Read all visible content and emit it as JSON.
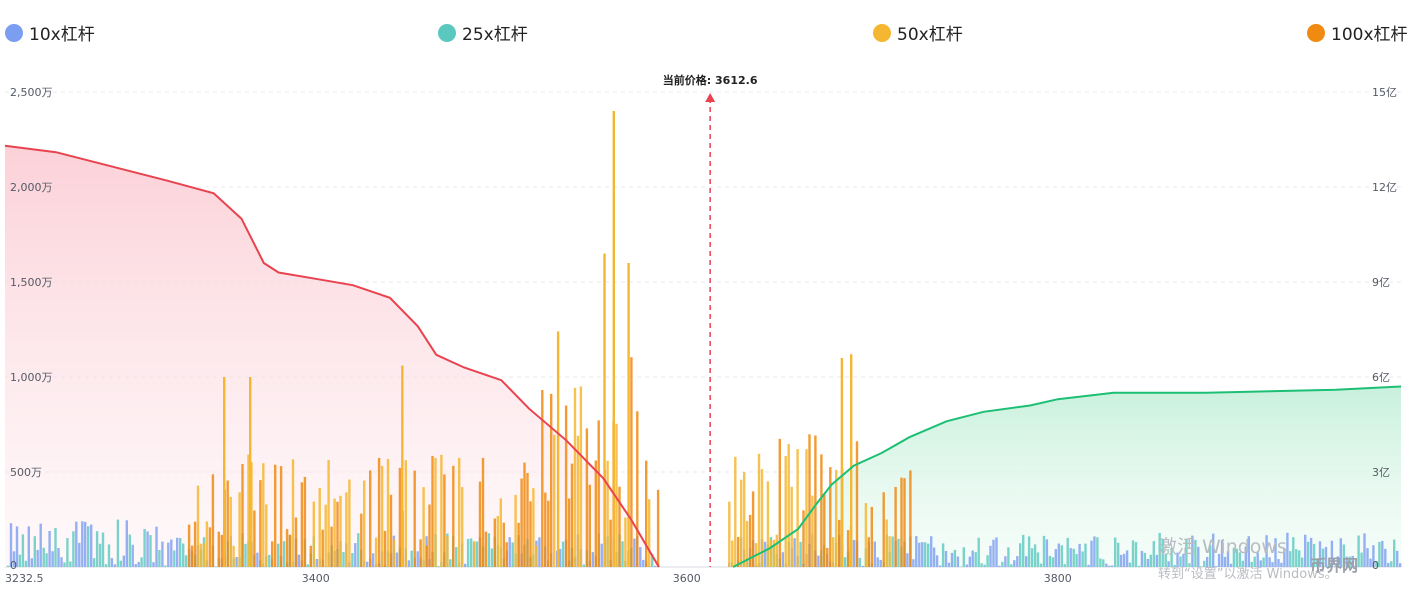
{
  "legend": [
    {
      "label": "10x杠杆",
      "color": "#7b9ef0"
    },
    {
      "label": "25x杠杆",
      "color": "#5ac8be"
    },
    {
      "label": "50x杠杆",
      "color": "#f5b731"
    },
    {
      "label": "100x杠杆",
      "color": "#f08a10"
    }
  ],
  "chart_data": {
    "type": "bar",
    "current_price_label": "当前价格: 3612.6",
    "current_price": 3612.6,
    "x_range": [
      3232.5,
      3985
    ],
    "x_ticks": [
      {
        "value": 3232.5,
        "label": "3232.5"
      },
      {
        "value": 3400,
        "label": "3400"
      },
      {
        "value": 3600,
        "label": "3600"
      },
      {
        "value": 3800,
        "label": "3800"
      }
    ],
    "left_axis": {
      "range": [
        0,
        25000000
      ],
      "ticks": [
        {
          "value": 0,
          "label": "0"
        },
        {
          "value": 5000000,
          "label": "500万"
        },
        {
          "value": 10000000,
          "label": "1,000万"
        },
        {
          "value": 15000000,
          "label": "1,500万"
        },
        {
          "value": 20000000,
          "label": "2,000万"
        },
        {
          "value": 25000000,
          "label": "2,500万"
        }
      ]
    },
    "right_axis": {
      "range": [
        0,
        1500000000
      ],
      "ticks": [
        {
          "value": 0,
          "label": "0"
        },
        {
          "value": 300000000,
          "label": "3亿"
        },
        {
          "value": 600000000,
          "label": "6亿"
        },
        {
          "value": 900000000,
          "label": "9亿"
        },
        {
          "value": 1200000000,
          "label": "12亿"
        },
        {
          "value": 1500000000,
          "label": "15亿"
        }
      ]
    },
    "cumulative_long": {
      "color": "#e8434f",
      "points": [
        [
          3232.5,
          1330000000
        ],
        [
          3260,
          1310000000
        ],
        [
          3280,
          1280000000
        ],
        [
          3300,
          1250000000
        ],
        [
          3320,
          1220000000
        ],
        [
          3345,
          1180000000
        ],
        [
          3360,
          1100000000
        ],
        [
          3372,
          960000000
        ],
        [
          3380,
          930000000
        ],
        [
          3400,
          910000000
        ],
        [
          3420,
          890000000
        ],
        [
          3440,
          850000000
        ],
        [
          3455,
          760000000
        ],
        [
          3465,
          670000000
        ],
        [
          3480,
          630000000
        ],
        [
          3500,
          590000000
        ],
        [
          3515,
          500000000
        ],
        [
          3535,
          400000000
        ],
        [
          3555,
          280000000
        ],
        [
          3570,
          150000000
        ],
        [
          3585,
          0
        ]
      ]
    },
    "cumulative_short": {
      "color": "#1dbf74",
      "points": [
        [
          3625,
          0
        ],
        [
          3645,
          60000000
        ],
        [
          3660,
          120000000
        ],
        [
          3670,
          200000000
        ],
        [
          3678,
          260000000
        ],
        [
          3690,
          320000000
        ],
        [
          3705,
          360000000
        ],
        [
          3720,
          410000000
        ],
        [
          3740,
          460000000
        ],
        [
          3760,
          490000000
        ],
        [
          3785,
          510000000
        ],
        [
          3800,
          530000000
        ],
        [
          3830,
          550000000
        ],
        [
          3880,
          550000000
        ],
        [
          3950,
          560000000
        ],
        [
          3985,
          570000000
        ]
      ]
    },
    "bar_regions": {
      "gap": [
        3585,
        3622
      ],
      "x_start": 3232.5,
      "x_end": 3985,
      "step": 1.6
    },
    "bar_peaks": [
      {
        "x": 3350,
        "value": 10000000
      },
      {
        "x": 3364,
        "value": 10000000
      },
      {
        "x": 3446,
        "value": 10600000
      },
      {
        "x": 3530,
        "value": 12400000
      },
      {
        "x": 3555,
        "value": 16500000
      },
      {
        "x": 3560,
        "value": 24000000
      },
      {
        "x": 3568,
        "value": 16000000
      },
      {
        "x": 3683,
        "value": 11000000
      },
      {
        "x": 3688,
        "value": 11200000
      }
    ]
  },
  "watermark": {
    "title": "激活 Windows",
    "subtitle": "转到“设置”以激活 Windows。"
  },
  "site_logo": "币界网"
}
